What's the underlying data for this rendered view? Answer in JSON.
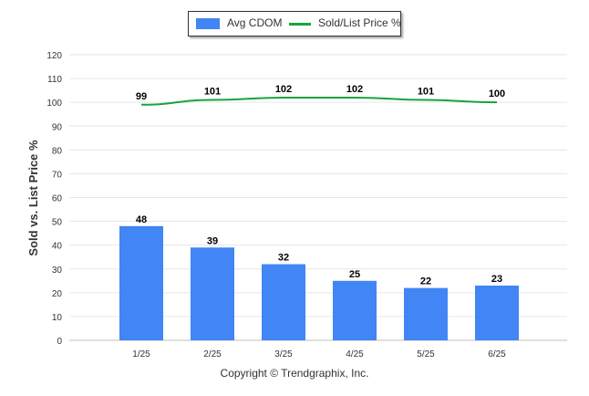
{
  "chart_data": {
    "type": "bar",
    "categories": [
      "1/25",
      "2/25",
      "3/25",
      "4/25",
      "5/25",
      "6/25"
    ],
    "series": [
      {
        "name": "Avg CDOM",
        "type": "bar",
        "color": "#4285f4",
        "values": [
          48,
          39,
          32,
          25,
          22,
          23
        ]
      },
      {
        "name": "Sold/List Price %",
        "type": "line",
        "color": "#1aa33a",
        "values": [
          99,
          101,
          102,
          102,
          101,
          100
        ]
      }
    ],
    "ylabel": "Sold vs. List Price %",
    "xlabel": "",
    "ylim": [
      0,
      120
    ],
    "yticks": [
      0,
      10,
      20,
      30,
      40,
      50,
      60,
      70,
      80,
      90,
      100,
      110,
      120
    ],
    "grid": true,
    "legend": "top-center",
    "data_labels": true
  },
  "footer": "Copyright © Trendgraphix, Inc."
}
